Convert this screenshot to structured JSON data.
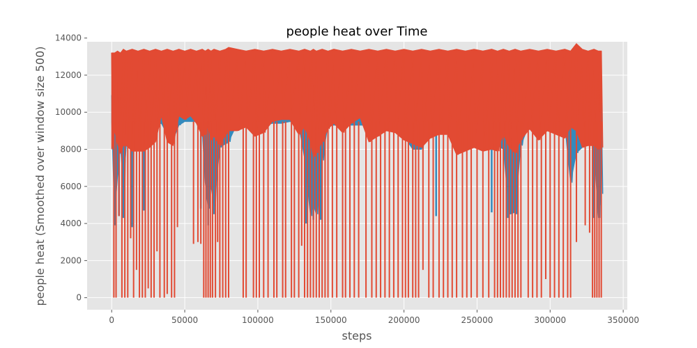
{
  "chart_data": {
    "type": "line",
    "title": "people heat over Time",
    "xlabel": "steps",
    "ylabel": "people heat (Smoothed over window size 500)",
    "xlim": [
      -16800,
      352800
    ],
    "ylim": [
      -650,
      13800
    ],
    "xticks": [
      0,
      50000,
      100000,
      150000,
      200000,
      250000,
      300000,
      350000
    ],
    "xtick_labels": [
      "0",
      "50000",
      "100000",
      "150000",
      "200000",
      "250000",
      "300000",
      "350000"
    ],
    "yticks": [
      0,
      2000,
      4000,
      6000,
      8000,
      10000,
      12000,
      14000
    ],
    "ytick_labels": [
      "0",
      "2000",
      "4000",
      "6000",
      "8000",
      "10000",
      "12000",
      "14000"
    ],
    "grid": true,
    "background": "#e5e5e5",
    "series": [
      {
        "color": "#348abd",
        "x": [
          0,
          2000,
          4000,
          6000,
          8000,
          10000,
          14000,
          18000,
          22000,
          26000,
          30000,
          34000,
          38000,
          42000,
          46000,
          50000,
          54000,
          58000,
          62000,
          64000,
          66000,
          68000,
          70000,
          74000,
          78000,
          80000,
          86000,
          92000,
          98000,
          104000,
          110000,
          116000,
          122000,
          128000,
          132000,
          136000,
          138000,
          140000,
          144000,
          148000,
          152000,
          158000,
          164000,
          170000,
          176000,
          182000,
          188000,
          194000,
          200000,
          206000,
          212000,
          218000,
          224000,
          230000,
          236000,
          242000,
          248000,
          254000,
          260000,
          264000,
          268000,
          272000,
          276000,
          280000,
          286000,
          292000,
          298000,
          304000,
          310000,
          314000,
          318000,
          322000,
          326000,
          330000,
          333000,
          335000
        ],
        "low": [
          9500,
          4400,
          6500,
          8200,
          5800,
          8200,
          8100,
          8200,
          8000,
          9300,
          9300,
          9400,
          8800,
          8500,
          9300,
          9500,
          9500,
          9500,
          9000,
          6200,
          4800,
          6000,
          4900,
          8100,
          8300,
          8400,
          9400,
          9400,
          9300,
          9300,
          9400,
          9400,
          9500,
          9300,
          7500,
          4400,
          5000,
          4500,
          7400,
          9300,
          9300,
          9300,
          9300,
          9300,
          9300,
          9300,
          9300,
          9300,
          8700,
          8000,
          8000,
          9300,
          9300,
          9300,
          9300,
          9300,
          9300,
          9300,
          8800,
          8200,
          8000,
          4500,
          4600,
          8200,
          9400,
          9300,
          9300,
          9300,
          9300,
          6200,
          7800,
          8100,
          8900,
          8000,
          4300,
          5600
        ],
        "high": [
          10900,
          10800,
          11000,
          11100,
          11000,
          11000,
          11100,
          11000,
          11000,
          11100,
          11100,
          11000,
          11000,
          11100,
          11000,
          11100,
          11100,
          11100,
          11300,
          11100,
          11000,
          11100,
          11000,
          11000,
          11100,
          11000,
          11100,
          11100,
          11000,
          11100,
          11100,
          11000,
          11000,
          11100,
          11000,
          11000,
          10800,
          10900,
          11000,
          11000,
          11100,
          11000,
          11000,
          11000,
          11000,
          11000,
          11000,
          11000,
          11100,
          11000,
          11000,
          11000,
          11000,
          11000,
          11100,
          11000,
          11000,
          11100,
          11000,
          10900,
          11000,
          10800,
          10900,
          11000,
          11100,
          11000,
          11100,
          11000,
          11100,
          11000,
          11000,
          11100,
          11000,
          10900,
          10600,
          10500
        ]
      },
      {
        "color": "#e24a33",
        "x": [
          0,
          2000,
          4000,
          6000,
          8000,
          10000,
          14000,
          18000,
          22000,
          26000,
          30000,
          34000,
          38000,
          42000,
          46000,
          50000,
          54000,
          58000,
          62000,
          64000,
          66000,
          68000,
          70000,
          74000,
          78000,
          80000,
          86000,
          92000,
          98000,
          104000,
          110000,
          116000,
          122000,
          128000,
          132000,
          136000,
          138000,
          140000,
          144000,
          148000,
          152000,
          158000,
          164000,
          170000,
          176000,
          182000,
          188000,
          194000,
          200000,
          206000,
          212000,
          218000,
          224000,
          230000,
          236000,
          242000,
          248000,
          254000,
          260000,
          264000,
          268000,
          272000,
          276000,
          280000,
          286000,
          292000,
          298000,
          304000,
          310000,
          314000,
          318000,
          322000,
          326000,
          330000,
          333000,
          335000
        ],
        "low": [
          8000,
          9000,
          8300,
          7800,
          8200,
          8200,
          7900,
          7900,
          7900,
          8100,
          8400,
          9800,
          8400,
          8200,
          9800,
          9600,
          9800,
          9400,
          8700,
          8800,
          9300,
          8500,
          8700,
          8200,
          8800,
          9000,
          9000,
          9200,
          8700,
          8900,
          9500,
          9600,
          9600,
          8800,
          9200,
          8400,
          7600,
          7800,
          8400,
          9100,
          9400,
          8900,
          9400,
          9700,
          8400,
          8700,
          9000,
          8900,
          8500,
          8300,
          8100,
          8600,
          8800,
          8800,
          7700,
          7900,
          8100,
          7900,
          8000,
          7900,
          8800,
          8100,
          7800,
          8500,
          9100,
          8500,
          9000,
          8800,
          8600,
          9200,
          9000,
          8100,
          8200,
          8200,
          8000,
          8100
        ],
        "high": [
          13200,
          13200,
          13300,
          13200,
          13400,
          13300,
          13400,
          13300,
          13400,
          13300,
          13400,
          13300,
          13400,
          13300,
          13400,
          13300,
          13400,
          13300,
          13400,
          13300,
          13400,
          13300,
          13400,
          13300,
          13400,
          13500,
          13400,
          13300,
          13400,
          13300,
          13400,
          13300,
          13400,
          13300,
          13400,
          13300,
          13400,
          13300,
          13400,
          13300,
          13400,
          13300,
          13400,
          13300,
          13400,
          13300,
          13400,
          13300,
          13400,
          13300,
          13400,
          13300,
          13400,
          13300,
          13400,
          13300,
          13400,
          13300,
          13400,
          13300,
          13400,
          13300,
          13400,
          13300,
          13400,
          13300,
          13400,
          13300,
          13400,
          13300,
          13700,
          13400,
          13300,
          13400,
          13300,
          13300
        ]
      }
    ],
    "red_drops": [
      {
        "x": 1500,
        "y": 0
      },
      {
        "x": 3000,
        "y": 0
      },
      {
        "x": 5000,
        "y": 4400
      },
      {
        "x": 7000,
        "y": 0
      },
      {
        "x": 9000,
        "y": 0
      },
      {
        "x": 11000,
        "y": 0
      },
      {
        "x": 13000,
        "y": 3200
      },
      {
        "x": 15000,
        "y": 0
      },
      {
        "x": 17000,
        "y": 1500
      },
      {
        "x": 19000,
        "y": 0
      },
      {
        "x": 21000,
        "y": 0
      },
      {
        "x": 23000,
        "y": 0
      },
      {
        "x": 25000,
        "y": 500
      },
      {
        "x": 27000,
        "y": 0
      },
      {
        "x": 29000,
        "y": 0
      },
      {
        "x": 31000,
        "y": 2500
      },
      {
        "x": 33000,
        "y": 0
      },
      {
        "x": 36000,
        "y": 0
      },
      {
        "x": 38000,
        "y": 200
      },
      {
        "x": 41000,
        "y": 0
      },
      {
        "x": 43000,
        "y": 0
      },
      {
        "x": 45000,
        "y": 3800
      },
      {
        "x": 56000,
        "y": 2900
      },
      {
        "x": 59000,
        "y": 3000
      },
      {
        "x": 61000,
        "y": 2900
      },
      {
        "x": 63000,
        "y": 0
      },
      {
        "x": 64500,
        "y": 0
      },
      {
        "x": 66000,
        "y": 0
      },
      {
        "x": 67500,
        "y": 0
      },
      {
        "x": 69000,
        "y": 0
      },
      {
        "x": 71000,
        "y": 0
      },
      {
        "x": 72500,
        "y": 3000
      },
      {
        "x": 74000,
        "y": 0
      },
      {
        "x": 76000,
        "y": 0
      },
      {
        "x": 78000,
        "y": 0
      },
      {
        "x": 80000,
        "y": 0
      },
      {
        "x": 90000,
        "y": 0
      },
      {
        "x": 92000,
        "y": 0
      },
      {
        "x": 97000,
        "y": 0
      },
      {
        "x": 99000,
        "y": 0
      },
      {
        "x": 101000,
        "y": 0
      },
      {
        "x": 104000,
        "y": 0
      },
      {
        "x": 107000,
        "y": 0
      },
      {
        "x": 111000,
        "y": 0
      },
      {
        "x": 113000,
        "y": 0
      },
      {
        "x": 117000,
        "y": 0
      },
      {
        "x": 119000,
        "y": 0
      },
      {
        "x": 123000,
        "y": 0
      },
      {
        "x": 125000,
        "y": 0
      },
      {
        "x": 128000,
        "y": 0
      },
      {
        "x": 130000,
        "y": 2800
      },
      {
        "x": 132000,
        "y": 0
      },
      {
        "x": 134000,
        "y": 0
      },
      {
        "x": 136000,
        "y": 0
      },
      {
        "x": 138000,
        "y": 0
      },
      {
        "x": 140000,
        "y": 0
      },
      {
        "x": 142000,
        "y": 0
      },
      {
        "x": 144000,
        "y": 0
      },
      {
        "x": 146000,
        "y": 0
      },
      {
        "x": 148000,
        "y": 0
      },
      {
        "x": 151000,
        "y": 0
      },
      {
        "x": 154000,
        "y": 0
      },
      {
        "x": 158000,
        "y": 0
      },
      {
        "x": 160000,
        "y": 0
      },
      {
        "x": 163000,
        "y": 0
      },
      {
        "x": 166000,
        "y": 0
      },
      {
        "x": 169000,
        "y": 0
      },
      {
        "x": 174000,
        "y": 0
      },
      {
        "x": 178000,
        "y": 0
      },
      {
        "x": 181000,
        "y": 0
      },
      {
        "x": 184000,
        "y": 0
      },
      {
        "x": 187000,
        "y": 0
      },
      {
        "x": 190000,
        "y": 0
      },
      {
        "x": 193000,
        "y": 0
      },
      {
        "x": 196000,
        "y": 0
      },
      {
        "x": 199000,
        "y": 0
      },
      {
        "x": 201000,
        "y": 0
      },
      {
        "x": 203000,
        "y": 0
      },
      {
        "x": 206000,
        "y": 0
      },
      {
        "x": 208000,
        "y": 0
      },
      {
        "x": 210000,
        "y": 0
      },
      {
        "x": 213000,
        "y": 1500
      },
      {
        "x": 217000,
        "y": 0
      },
      {
        "x": 220000,
        "y": 0
      },
      {
        "x": 224000,
        "y": 0
      },
      {
        "x": 227000,
        "y": 0
      },
      {
        "x": 230000,
        "y": 0
      },
      {
        "x": 233000,
        "y": 0
      },
      {
        "x": 236000,
        "y": 0
      },
      {
        "x": 240000,
        "y": 0
      },
      {
        "x": 243000,
        "y": 0
      },
      {
        "x": 246000,
        "y": 0
      },
      {
        "x": 250000,
        "y": 0
      },
      {
        "x": 254000,
        "y": 0
      },
      {
        "x": 258000,
        "y": 0
      },
      {
        "x": 262000,
        "y": 0
      },
      {
        "x": 264000,
        "y": 0
      },
      {
        "x": 266000,
        "y": 0
      },
      {
        "x": 268000,
        "y": 0
      },
      {
        "x": 270000,
        "y": 0
      },
      {
        "x": 272000,
        "y": 0
      },
      {
        "x": 274000,
        "y": 0
      },
      {
        "x": 276000,
        "y": 0
      },
      {
        "x": 278000,
        "y": 0
      },
      {
        "x": 280000,
        "y": 0
      },
      {
        "x": 285000,
        "y": 0
      },
      {
        "x": 288000,
        "y": 0
      },
      {
        "x": 291000,
        "y": 0
      },
      {
        "x": 294000,
        "y": 0
      },
      {
        "x": 297000,
        "y": 1000
      },
      {
        "x": 300000,
        "y": 0
      },
      {
        "x": 303000,
        "y": 0
      },
      {
        "x": 306000,
        "y": 0
      },
      {
        "x": 309000,
        "y": 0
      },
      {
        "x": 312000,
        "y": 0
      },
      {
        "x": 314000,
        "y": 0
      },
      {
        "x": 318000,
        "y": 3000
      },
      {
        "x": 324000,
        "y": 3900
      },
      {
        "x": 327000,
        "y": 3500
      },
      {
        "x": 329000,
        "y": 0
      },
      {
        "x": 330500,
        "y": 0
      },
      {
        "x": 332000,
        "y": 0
      },
      {
        "x": 333500,
        "y": 0
      },
      {
        "x": 335000,
        "y": 0
      }
    ],
    "blue_drops": [
      {
        "x": 2000,
        "y": 3900
      },
      {
        "x": 5000,
        "y": 4400
      },
      {
        "x": 8000,
        "y": 4300
      },
      {
        "x": 14000,
        "y": 3800
      },
      {
        "x": 22000,
        "y": 4700
      },
      {
        "x": 61000,
        "y": 4800
      },
      {
        "x": 66000,
        "y": 3900
      },
      {
        "x": 70000,
        "y": 4500
      },
      {
        "x": 133000,
        "y": 4000
      },
      {
        "x": 138000,
        "y": 4200
      },
      {
        "x": 143000,
        "y": 4200
      },
      {
        "x": 222000,
        "y": 4400
      },
      {
        "x": 260000,
        "y": 4600
      },
      {
        "x": 271000,
        "y": 4300
      },
      {
        "x": 277000,
        "y": 4500
      },
      {
        "x": 330000,
        "y": 4300
      },
      {
        "x": 334000,
        "y": 5000
      }
    ]
  }
}
